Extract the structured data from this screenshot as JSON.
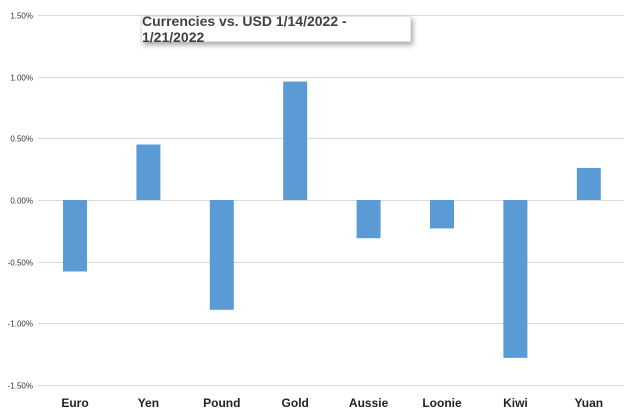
{
  "chart_data": {
    "type": "bar",
    "title": "Currencies vs. USD 1/14/2022 - 1/21/2022",
    "xlabel": "",
    "ylabel": "",
    "categories": [
      "Euro",
      "Yen",
      "Pound",
      "Gold",
      "Aussie",
      "Loonie",
      "Kiwi",
      "Yuan"
    ],
    "values": [
      -0.58,
      0.45,
      -0.89,
      0.96,
      -0.31,
      -0.23,
      -1.28,
      0.26
    ],
    "value_unit": "%",
    "ylim": [
      -1.5,
      1.5
    ],
    "yticks": [
      1.5,
      1.0,
      0.5,
      0.0,
      -0.5,
      -1.0,
      -1.5
    ],
    "ytick_labels": [
      "1.50%",
      "1.00%",
      "0.50%",
      "0.00%",
      "-0.50%",
      "-1.00%",
      "-1.50%"
    ],
    "grid": true,
    "legend": "none",
    "bar_color": "#5b9bd5",
    "grid_color": "#d9d9d9"
  }
}
